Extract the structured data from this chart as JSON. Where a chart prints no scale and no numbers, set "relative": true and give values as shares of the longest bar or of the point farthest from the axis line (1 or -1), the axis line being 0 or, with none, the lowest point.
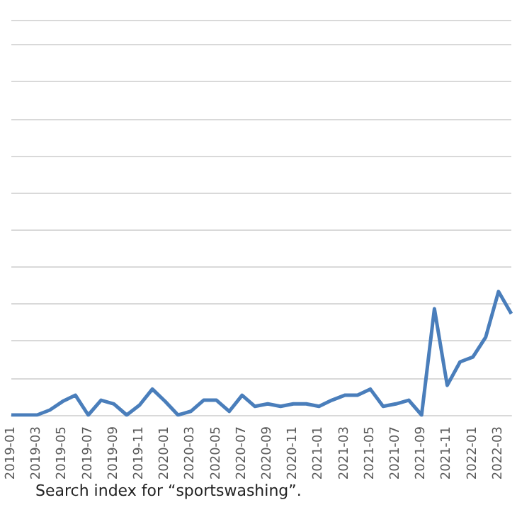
{
  "chart_data": {
    "type": "line",
    "relative": true,
    "grid": "y",
    "marker": "none",
    "line_style": "solid",
    "annotations": [
      "Search index for “sportswashing”."
    ],
    "categories": [
      "2019-01",
      null,
      "2019-03",
      null,
      "2019-05",
      null,
      "2019-07",
      null,
      "2019-09",
      null,
      "2019-11",
      null,
      "2020-01",
      null,
      "2020-03",
      null,
      "2020-05",
      null,
      "2020-07",
      null,
      "2020-09",
      null,
      "2020-11",
      null,
      "2021-01",
      null,
      "2021-03",
      null,
      "2021-05",
      null,
      "2021-07",
      null,
      "2021-09",
      null,
      "2021-11",
      null,
      "2022-01",
      null,
      "2022-03",
      null
    ],
    "series": [
      {
        "color": "#4a7ebb",
        "values": [
          0,
          0,
          0,
          0.04,
          0.11,
          0.16,
          0,
          0.12,
          0.09,
          0,
          0.08,
          0.21,
          0.11,
          0,
          0.03,
          0.12,
          0.12,
          0.03,
          0.16,
          0.07,
          0.09,
          0.07,
          0.09,
          0.09,
          0.07,
          0.12,
          0.16,
          0.16,
          0.21,
          0.07,
          0.09,
          0.12,
          0,
          0.86,
          0.24,
          0.43,
          0.47,
          0.63,
          1,
          0.82
        ]
      }
    ]
  }
}
